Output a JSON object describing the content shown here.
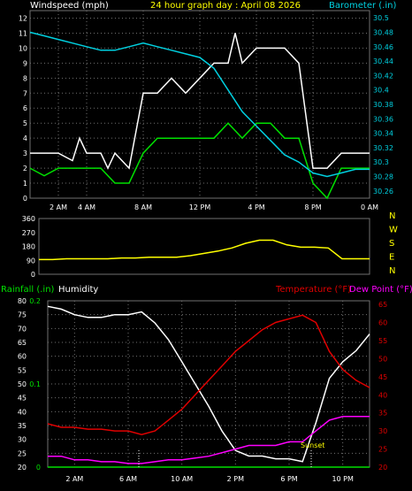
{
  "header": {
    "left": "Windspeed (mph)",
    "center": "24 hour graph day : April 08 2026",
    "right": "Barometer (.in)"
  },
  "panel2": {
    "compass": [
      "N",
      "W",
      "S",
      "E",
      "N"
    ]
  },
  "panel3": {
    "rainfall_label": "Rainfall (.in)",
    "humidity_label": "Humidity",
    "temperature_label": "Temperature (°F)",
    "dewpoint_label": "Dew Point (°F)",
    "sunset_label": "Sunset"
  },
  "colors": {
    "white": "#ffffff",
    "gust": "#ffffff",
    "wind": "#00e000",
    "barometer": "#00d0e0",
    "direction": "#ffff00",
    "temperature": "#e00000",
    "dewpoint": "#ff00ff",
    "rain_axis": "#00e000",
    "humidity": "#ffffff",
    "grid": "#707070"
  },
  "chart_data": [
    {
      "type": "line",
      "title": "24 hour graph day : April 08 2026",
      "ylabel": "Windspeed (mph)",
      "y2label": "Barometer (.in)",
      "x_ticks": [
        "2 AM",
        "4 AM",
        "8 AM",
        "12 PM",
        "4 PM",
        "8 PM",
        "0 AM"
      ],
      "ylim": [
        0,
        12.5
      ],
      "y2lim": [
        30.25,
        30.51
      ],
      "y_ticks": [
        0,
        1,
        2,
        3,
        4,
        5,
        6,
        7,
        8,
        9,
        10,
        11,
        12
      ],
      "y2_ticks": [
        "30.26",
        "30.28",
        "30.3",
        "30.32",
        "30.34",
        "30.36",
        "30.38",
        "30.4",
        "30.42",
        "30.44",
        "30.46",
        "30.48",
        "30.5"
      ],
      "xlim": [
        0,
        24
      ],
      "series": [
        {
          "name": "Wind gust",
          "color": "white",
          "x": [
            0,
            1,
            2,
            3,
            3.5,
            4,
            5,
            5.5,
            6,
            7,
            8,
            9,
            10,
            11,
            12,
            13,
            14,
            14.5,
            15,
            16,
            17,
            18,
            19,
            20,
            21,
            22,
            23,
            24
          ],
          "y": [
            3,
            3,
            3,
            2.5,
            4,
            3,
            3,
            2,
            3,
            2,
            7,
            7,
            8,
            7,
            8,
            9,
            9,
            11,
            9,
            10,
            10,
            10,
            9,
            2,
            2,
            3,
            3,
            3
          ]
        },
        {
          "name": "Wind speed",
          "color": "wind",
          "x": [
            0,
            1,
            2,
            3,
            4,
            5,
            6,
            7,
            8,
            9,
            10,
            11,
            12,
            13,
            14,
            15,
            16,
            17,
            18,
            19,
            20,
            21,
            22,
            23,
            24
          ],
          "y": [
            2,
            1.5,
            2,
            2,
            2,
            2,
            1,
            1,
            3,
            4,
            4,
            4,
            4,
            4,
            5,
            4,
            5,
            5,
            4,
            4,
            1,
            0,
            2,
            2,
            2
          ]
        },
        {
          "name": "Barometer",
          "color": "barometer",
          "axis": "right",
          "x": [
            0,
            1,
            2,
            3,
            4,
            5,
            6,
            7,
            8,
            9,
            10,
            11,
            12,
            13,
            14,
            15,
            16,
            17,
            18,
            19,
            20,
            21,
            22,
            23,
            24
          ],
          "y": [
            30.48,
            30.475,
            30.47,
            30.465,
            30.46,
            30.455,
            30.455,
            30.46,
            30.465,
            30.46,
            30.455,
            30.45,
            30.445,
            30.43,
            30.4,
            30.37,
            30.35,
            30.33,
            30.31,
            30.3,
            30.285,
            30.28,
            30.285,
            30.29,
            30.29
          ]
        }
      ]
    },
    {
      "type": "line",
      "ylabel": "Wind direction",
      "xlim": [
        0,
        24
      ],
      "ylim": [
        0,
        360
      ],
      "y_ticks": [
        0,
        90,
        180,
        270,
        360
      ],
      "series": [
        {
          "name": "Direction",
          "color": "direction",
          "x": [
            0,
            1,
            2,
            3,
            4,
            5,
            6,
            7,
            8,
            9,
            10,
            11,
            12,
            13,
            14,
            15,
            16,
            17,
            18,
            19,
            20,
            21,
            22,
            23,
            24
          ],
          "y": [
            95,
            95,
            100,
            100,
            100,
            100,
            105,
            105,
            110,
            110,
            110,
            120,
            135,
            150,
            170,
            200,
            220,
            220,
            190,
            175,
            175,
            170,
            100,
            100,
            100
          ]
        }
      ]
    },
    {
      "type": "line",
      "x_ticks": [
        "2 AM",
        "6 AM",
        "10 AM",
        "2 PM",
        "6 PM",
        "10 PM"
      ],
      "xlim": [
        0,
        24
      ],
      "ylim": [
        20,
        80
      ],
      "y_ticks": [
        20,
        25,
        30,
        35,
        40,
        45,
        50,
        55,
        60,
        65,
        70,
        75,
        80
      ],
      "y2lim": [
        20,
        66
      ],
      "y2_ticks": [
        20,
        25,
        30,
        35,
        40,
        45,
        50,
        55,
        60,
        65
      ],
      "rain_ticks": [
        "0",
        "0.1",
        "0.2"
      ],
      "rain_lim": [
        0,
        0.2
      ],
      "series": [
        {
          "name": "Humidity",
          "color": "humidity",
          "x": [
            0,
            1,
            2,
            3,
            4,
            5,
            6,
            7,
            8,
            9,
            10,
            11,
            12,
            13,
            14,
            15,
            16,
            17,
            18,
            19,
            20,
            21,
            22,
            23,
            24
          ],
          "y": [
            78,
            77,
            75,
            74,
            74,
            75,
            75,
            76,
            72,
            66,
            58,
            50,
            42,
            33,
            26,
            24,
            24,
            23,
            23,
            22,
            36,
            52,
            58,
            62,
            68
          ]
        },
        {
          "name": "Temperature",
          "color": "temperature",
          "axis": "right",
          "x": [
            0,
            1,
            2,
            3,
            4,
            5,
            6,
            7,
            8,
            9,
            10,
            11,
            12,
            13,
            14,
            15,
            16,
            17,
            18,
            19,
            20,
            21,
            22,
            23,
            24
          ],
          "y": [
            32,
            31,
            31,
            30.5,
            30.5,
            30,
            30,
            29,
            30,
            33,
            36,
            40,
            44,
            48,
            52,
            55,
            58,
            60,
            61,
            62,
            60,
            52,
            47,
            44,
            42
          ]
        },
        {
          "name": "Dew Point",
          "color": "dewpoint",
          "axis": "right",
          "x": [
            0,
            1,
            2,
            3,
            4,
            5,
            6,
            7,
            8,
            9,
            10,
            11,
            12,
            13,
            14,
            15,
            16,
            17,
            18,
            19,
            20,
            21,
            22,
            23,
            24
          ],
          "y": [
            23,
            23,
            22,
            22,
            21.5,
            21.5,
            21,
            21,
            21.5,
            22,
            22,
            22.5,
            23,
            24,
            25,
            26,
            26,
            26,
            27,
            27,
            30,
            33,
            34,
            34,
            34
          ]
        },
        {
          "name": "Rainfall",
          "color": "rain_axis",
          "axis": "rain",
          "x": [
            0,
            24
          ],
          "y": [
            0,
            0
          ]
        }
      ]
    }
  ]
}
